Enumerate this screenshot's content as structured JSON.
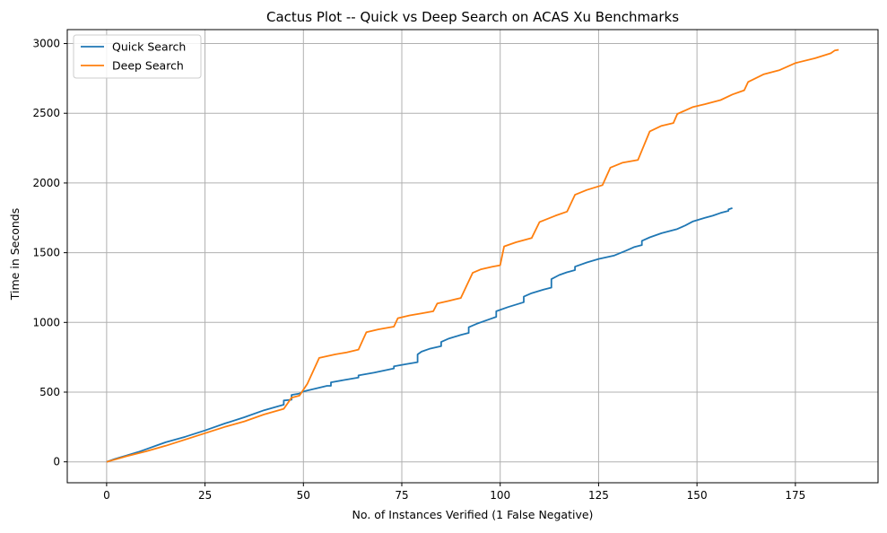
{
  "chart_data": {
    "type": "line",
    "title": "Cactus Plot -- Quick vs Deep Search on ACAS Xu Benchmarks",
    "xlabel": "No. of Instances Verified (1 False Negative)",
    "ylabel": "Time in Seconds",
    "xlim": [
      -10,
      196
    ],
    "ylim": [
      -150,
      3100
    ],
    "xticks": [
      0,
      25,
      50,
      75,
      100,
      125,
      150,
      175
    ],
    "yticks": [
      0,
      500,
      1000,
      1500,
      2000,
      2500,
      3000
    ],
    "grid": true,
    "legend_position": "upper-left",
    "series": [
      {
        "name": "Quick Search",
        "color": "#1f77b4",
        "points": [
          [
            0,
            0
          ],
          [
            2,
            20
          ],
          [
            5,
            45
          ],
          [
            8,
            70
          ],
          [
            10,
            90
          ],
          [
            13,
            120
          ],
          [
            15,
            140
          ],
          [
            20,
            180
          ],
          [
            25,
            225
          ],
          [
            30,
            275
          ],
          [
            35,
            320
          ],
          [
            40,
            370
          ],
          [
            45,
            410
          ],
          [
            45,
            440
          ],
          [
            47,
            445
          ],
          [
            47,
            480
          ],
          [
            49,
            490
          ],
          [
            50,
            505
          ],
          [
            53,
            525
          ],
          [
            56,
            545
          ],
          [
            57,
            545
          ],
          [
            57,
            570
          ],
          [
            60,
            585
          ],
          [
            64,
            605
          ],
          [
            64,
            620
          ],
          [
            68,
            640
          ],
          [
            73,
            670
          ],
          [
            73,
            685
          ],
          [
            76,
            700
          ],
          [
            79,
            715
          ],
          [
            79,
            770
          ],
          [
            80,
            790
          ],
          [
            82,
            810
          ],
          [
            85,
            830
          ],
          [
            85,
            860
          ],
          [
            87,
            885
          ],
          [
            90,
            910
          ],
          [
            92,
            925
          ],
          [
            92,
            965
          ],
          [
            94,
            990
          ],
          [
            97,
            1020
          ],
          [
            99,
            1040
          ],
          [
            99,
            1080
          ],
          [
            102,
            1110
          ],
          [
            106,
            1145
          ],
          [
            106,
            1185
          ],
          [
            108,
            1210
          ],
          [
            111,
            1235
          ],
          [
            113,
            1250
          ],
          [
            113,
            1310
          ],
          [
            115,
            1340
          ],
          [
            117,
            1360
          ],
          [
            119,
            1375
          ],
          [
            119,
            1400
          ],
          [
            122,
            1430
          ],
          [
            125,
            1455
          ],
          [
            129,
            1480
          ],
          [
            132,
            1515
          ],
          [
            134,
            1540
          ],
          [
            136,
            1555
          ],
          [
            136,
            1585
          ],
          [
            138,
            1610
          ],
          [
            141,
            1640
          ],
          [
            145,
            1670
          ],
          [
            147,
            1695
          ],
          [
            149,
            1725
          ],
          [
            152,
            1750
          ],
          [
            154,
            1765
          ],
          [
            156,
            1785
          ],
          [
            158,
            1800
          ],
          [
            158,
            1810
          ],
          [
            159,
            1820
          ]
        ]
      },
      {
        "name": "Deep Search",
        "color": "#ff7f0e",
        "points": [
          [
            0,
            0
          ],
          [
            5,
            40
          ],
          [
            10,
            75
          ],
          [
            15,
            115
          ],
          [
            20,
            160
          ],
          [
            25,
            205
          ],
          [
            30,
            250
          ],
          [
            35,
            290
          ],
          [
            40,
            340
          ],
          [
            45,
            380
          ],
          [
            47,
            460
          ],
          [
            49,
            475
          ],
          [
            51,
            560
          ],
          [
            54,
            745
          ],
          [
            58,
            770
          ],
          [
            61,
            785
          ],
          [
            64,
            805
          ],
          [
            66,
            930
          ],
          [
            69,
            950
          ],
          [
            73,
            970
          ],
          [
            74,
            1030
          ],
          [
            77,
            1050
          ],
          [
            80,
            1065
          ],
          [
            83,
            1080
          ],
          [
            84,
            1135
          ],
          [
            87,
            1155
          ],
          [
            90,
            1175
          ],
          [
            93,
            1355
          ],
          [
            95,
            1380
          ],
          [
            98,
            1400
          ],
          [
            100,
            1410
          ],
          [
            101,
            1545
          ],
          [
            104,
            1575
          ],
          [
            108,
            1605
          ],
          [
            110,
            1720
          ],
          [
            114,
            1765
          ],
          [
            117,
            1795
          ],
          [
            119,
            1915
          ],
          [
            122,
            1950
          ],
          [
            126,
            1985
          ],
          [
            128,
            2110
          ],
          [
            131,
            2145
          ],
          [
            135,
            2165
          ],
          [
            138,
            2370
          ],
          [
            141,
            2410
          ],
          [
            144,
            2430
          ],
          [
            145,
            2495
          ],
          [
            149,
            2545
          ],
          [
            152,
            2565
          ],
          [
            156,
            2595
          ],
          [
            159,
            2635
          ],
          [
            162,
            2665
          ],
          [
            163,
            2725
          ],
          [
            167,
            2780
          ],
          [
            171,
            2810
          ],
          [
            175,
            2860
          ],
          [
            180,
            2895
          ],
          [
            184,
            2930
          ],
          [
            185,
            2950
          ],
          [
            186,
            2955
          ]
        ]
      }
    ]
  }
}
